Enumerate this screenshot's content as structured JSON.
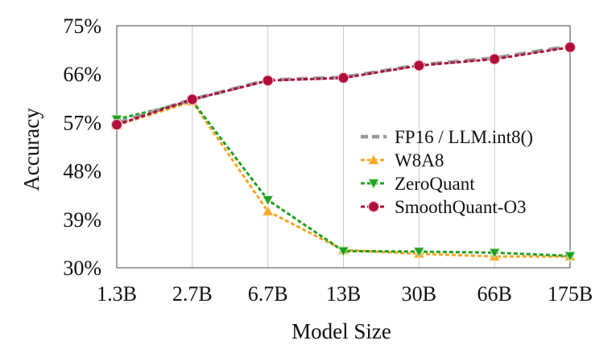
{
  "chart_data": {
    "type": "line",
    "title": "",
    "xlabel": "Model Size",
    "ylabel": "Accuracy",
    "categories": [
      "1.3B",
      "2.7B",
      "6.7B",
      "13B",
      "30B",
      "66B",
      "175B"
    ],
    "yticks": [
      "30%",
      "39%",
      "48%",
      "57%",
      "66%",
      "75%"
    ],
    "ytick_values": [
      30,
      39,
      48,
      57,
      66,
      75
    ],
    "ylim": [
      30,
      75
    ],
    "grid": "vertical",
    "legend_position": "center-right",
    "series": [
      {
        "name": "FP16 / LLM.int8()",
        "values": [
          56.9,
          61.3,
          64.9,
          65.4,
          67.7,
          69.0,
          71.2
        ],
        "color": "#999999",
        "marker": "none",
        "dash": "long"
      },
      {
        "name": "W8A8",
        "values": [
          56.5,
          60.9,
          40.5,
          33.3,
          32.6,
          32.1,
          32.1
        ],
        "color": "#F5A623",
        "marker": "triangle-up",
        "dash": "short"
      },
      {
        "name": "ZeroQuant",
        "values": [
          57.6,
          61.0,
          42.6,
          33.1,
          33.0,
          32.8,
          32.2
        ],
        "color": "#1FA01F",
        "marker": "triangle-down",
        "dash": "short"
      },
      {
        "name": "SmoothQuant-O3",
        "values": [
          56.6,
          61.3,
          64.8,
          65.3,
          67.6,
          68.8,
          71.0
        ],
        "color": "#B00D3A",
        "marker": "circle",
        "dash": "short"
      }
    ]
  }
}
